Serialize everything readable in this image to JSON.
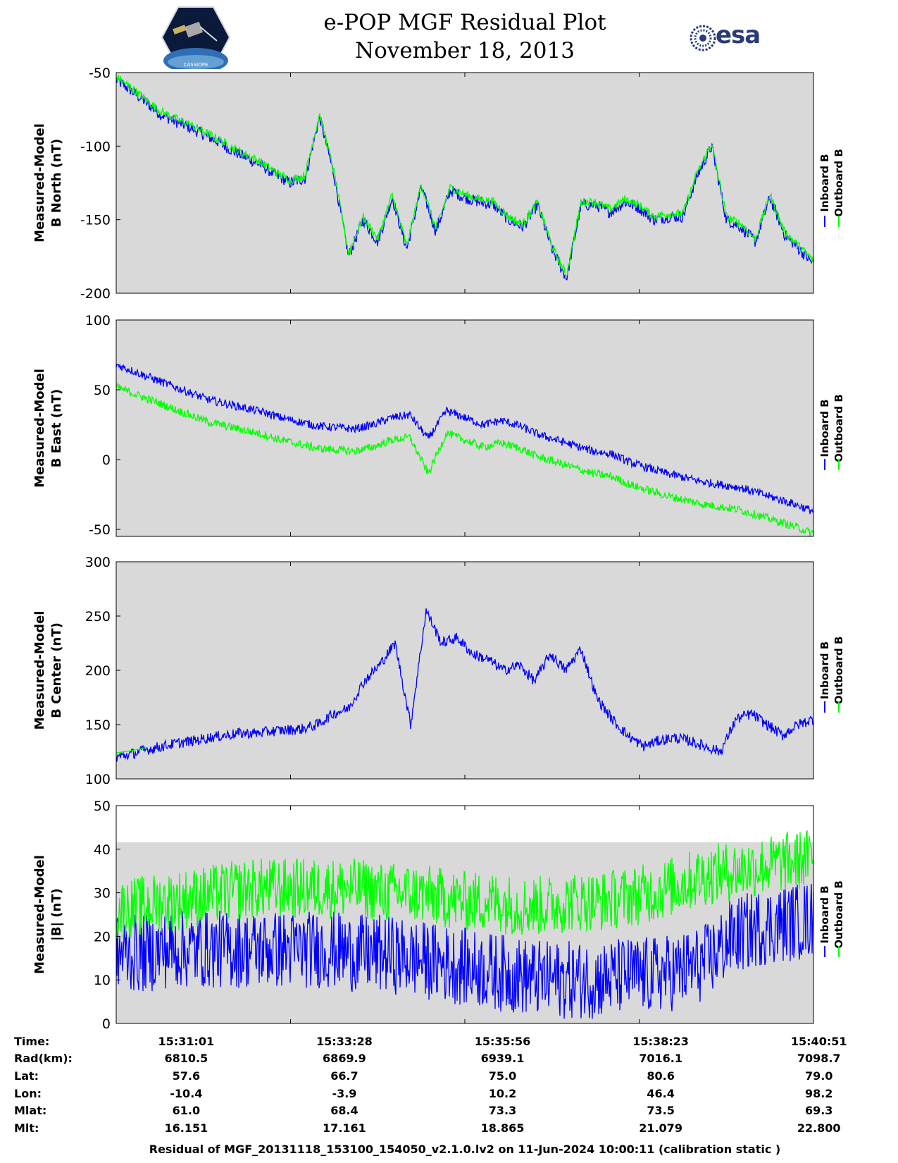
{
  "title": {
    "line1": "e-POP MGF Residual Plot",
    "line2": "November 18, 2013"
  },
  "logos": {
    "mission": "CASSIOPE",
    "agency": "esa"
  },
  "colors": {
    "inboard": "#0000ff",
    "outboard": "#00ff00",
    "panel_background": "#d9d9d9"
  },
  "legend": {
    "inboard": "Inboard B",
    "outboard": "Outboard B"
  },
  "chart_data": [
    {
      "type": "line",
      "ylabel_line1": "Measured-Model",
      "ylabel_line2": "B North (nT)",
      "ylim": [
        -200,
        -50
      ],
      "yticks": [
        -50,
        -100,
        -150,
        -200
      ],
      "series": [
        {
          "name": "Inboard B",
          "color": "#0000ff",
          "noise": 4,
          "values": [
            -55,
            -62,
            -70,
            -78,
            -83,
            -87,
            -92,
            -97,
            -103,
            -108,
            -113,
            -120,
            -125,
            -122,
            -80,
            -120,
            -175,
            -150,
            -165,
            -135,
            -170,
            -128,
            -158,
            -130,
            -135,
            -138,
            -140,
            -150,
            -155,
            -140,
            -170,
            -190,
            -140,
            -140,
            -145,
            -138,
            -142,
            -150,
            -148,
            -148,
            -120,
            -100,
            -150,
            -155,
            -165,
            -135,
            -160,
            -170,
            -180
          ]
        },
        {
          "name": "Outboard B",
          "color": "#00ff00",
          "noise": 3,
          "values": [
            -53,
            -60,
            -68,
            -76,
            -81,
            -85,
            -90,
            -95,
            -101,
            -106,
            -111,
            -118,
            -123,
            -120,
            -78,
            -118,
            -173,
            -148,
            -163,
            -133,
            -168,
            -126,
            -156,
            -128,
            -133,
            -136,
            -138,
            -148,
            -153,
            -138,
            -168,
            -188,
            -138,
            -138,
            -143,
            -136,
            -140,
            -148,
            -146,
            -146,
            -118,
            -98,
            -148,
            -153,
            -163,
            -133,
            -158,
            -168,
            -178
          ]
        }
      ]
    },
    {
      "type": "line",
      "ylabel_line1": "Measured-Model",
      "ylabel_line2": "B East (nT)",
      "ylim": [
        -55,
        100
      ],
      "yticks": [
        100,
        50,
        0,
        -50
      ],
      "series": [
        {
          "name": "Inboard B",
          "color": "#0000ff",
          "noise": 3,
          "values": [
            68,
            63,
            58,
            53,
            48,
            43,
            40,
            37,
            34,
            30,
            27,
            24,
            23,
            22,
            25,
            30,
            32,
            15,
            35,
            30,
            25,
            28,
            24,
            18,
            14,
            10,
            6,
            4,
            -2,
            -6,
            -10,
            -13,
            -16,
            -18,
            -20,
            -24,
            -28,
            -32,
            -37
          ]
        },
        {
          "name": "Outboard B",
          "color": "#00ff00",
          "noise": 3,
          "values": [
            52,
            47,
            42,
            37,
            32,
            27,
            24,
            21,
            18,
            14,
            11,
            8,
            7,
            6,
            9,
            14,
            16,
            -10,
            19,
            14,
            9,
            12,
            8,
            2,
            -2,
            -6,
            -10,
            -12,
            -18,
            -22,
            -26,
            -29,
            -32,
            -34,
            -36,
            -40,
            -44,
            -48,
            -53
          ]
        }
      ]
    },
    {
      "type": "line",
      "ylabel_line1": "Measured-Model",
      "ylabel_line2": "B Center (nT)",
      "ylim": [
        100,
        300
      ],
      "yticks": [
        300,
        250,
        200,
        150,
        100
      ],
      "series": [
        {
          "name": "Inboard B",
          "color": "#0000ff",
          "noise": 5,
          "values": [
            120,
            123,
            127,
            130,
            133,
            135,
            138,
            140,
            142,
            142,
            144,
            145,
            146,
            150,
            160,
            165,
            190,
            205,
            225,
            150,
            255,
            225,
            230,
            215,
            210,
            200,
            205,
            190,
            215,
            200,
            220,
            175,
            155,
            140,
            130,
            135,
            138,
            135,
            130,
            125,
            155,
            160,
            150,
            140,
            150,
            155
          ]
        },
        {
          "name": "Outboard B",
          "color": "#00ff00",
          "noise": 0,
          "values": [
            124,
            126,
            129
          ]
        }
      ]
    },
    {
      "type": "line",
      "ylabel_line1": "Measured-Model",
      "ylabel_line2": "|B| (nT)",
      "ylim": [
        0,
        50
      ],
      "yticks": [
        50,
        40,
        30,
        20,
        10,
        0
      ],
      "series": [
        {
          "name": "Inboard B",
          "color": "#0000ff",
          "noise": 9,
          "values": [
            16,
            16,
            17,
            17,
            17,
            17,
            17,
            17,
            17,
            16,
            16,
            15,
            14,
            13,
            12,
            11,
            10,
            10,
            10,
            11,
            11,
            12,
            14,
            20,
            22,
            23,
            24
          ]
        },
        {
          "name": "Outboard B",
          "color": "#00ff00",
          "noise": 7,
          "values": [
            26,
            27,
            28,
            29,
            30,
            31,
            31,
            31,
            31,
            31,
            30,
            30,
            29,
            28,
            28,
            27,
            27,
            28,
            28,
            29,
            30,
            32,
            34,
            35,
            36,
            37,
            38
          ]
        }
      ]
    }
  ],
  "orbit_table": {
    "labels": [
      "Time:",
      "Rad(km):",
      "Lat:",
      "Lon:",
      "Mlat:",
      "Mlt:"
    ],
    "columns": [
      [
        "15:31:01",
        "6810.5",
        "57.6",
        "-10.4",
        "61.0",
        "16.151"
      ],
      [
        "15:33:28",
        "6869.9",
        "66.7",
        "-3.9",
        "68.4",
        "17.161"
      ],
      [
        "15:35:56",
        "6939.1",
        "75.0",
        "10.2",
        "73.3",
        "18.865"
      ],
      [
        "15:38:23",
        "7016.1",
        "80.6",
        "46.4",
        "73.5",
        "21.079"
      ],
      [
        "15:40:51",
        "7098.7",
        "79.0",
        "98.2",
        "69.3",
        "22.800"
      ]
    ]
  },
  "footer": "Residual of MGF_20131118_153100_154050_v2.1.0.lv2 on 11-Jun-2024 10:00:11 (calibration static )"
}
